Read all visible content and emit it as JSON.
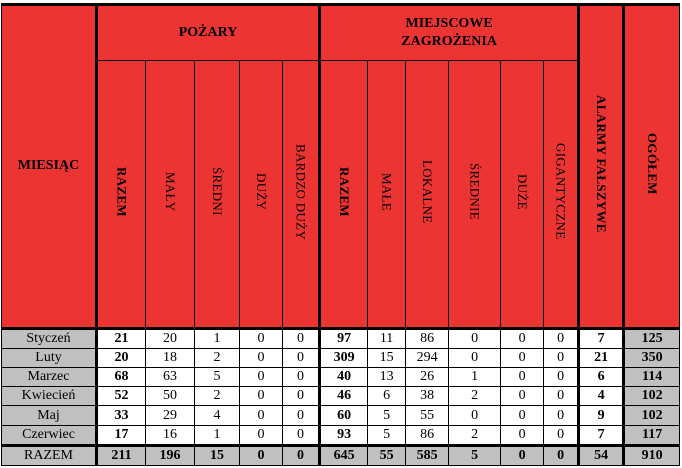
{
  "headers": {
    "month": "MIESIĄC",
    "fires_group": "POŻARY",
    "local_threats_group_line1": "MIEJSCOWE",
    "local_threats_group_line2": "ZAGROŻENIA",
    "fires_cols": [
      "RAZEM",
      "MAŁY",
      "ŚREDNI",
      "DUŻY",
      "BARDZO DUŻY"
    ],
    "threat_cols": [
      "RAZEM",
      "MAŁE",
      "LOKALNE",
      "ŚREDNIE",
      "DUŻE",
      "GIGANTYCZNE"
    ],
    "false_alarms": "ALARMY FAŁSZYWE",
    "total": "OGÓŁEM"
  },
  "rows": [
    {
      "month": "Styczeń",
      "values": [
        "21",
        "20",
        "1",
        "0",
        "0",
        "97",
        "11",
        "86",
        "0",
        "0",
        "0",
        "7",
        "125"
      ]
    },
    {
      "month": "Luty",
      "values": [
        "20",
        "18",
        "2",
        "0",
        "0",
        "309",
        "15",
        "294",
        "0",
        "0",
        "0",
        "21",
        "350"
      ]
    },
    {
      "month": "Marzec",
      "values": [
        "68",
        "63",
        "5",
        "0",
        "0",
        "40",
        "13",
        "26",
        "1",
        "0",
        "0",
        "6",
        "114"
      ]
    },
    {
      "month": "Kwiecień",
      "values": [
        "52",
        "50",
        "2",
        "0",
        "0",
        "46",
        "6",
        "38",
        "2",
        "0",
        "0",
        "4",
        "102"
      ]
    },
    {
      "month": "Maj",
      "values": [
        "33",
        "29",
        "4",
        "0",
        "0",
        "60",
        "5",
        "55",
        "0",
        "0",
        "0",
        "9",
        "102"
      ]
    },
    {
      "month": "Czerwiec",
      "values": [
        "17",
        "16",
        "1",
        "0",
        "0",
        "93",
        "5",
        "86",
        "2",
        "0",
        "0",
        "7",
        "117"
      ]
    }
  ],
  "summary": {
    "label": "RAZEM",
    "values": [
      "211",
      "196",
      "15",
      "0",
      "0",
      "645",
      "55",
      "585",
      "5",
      "0",
      "0",
      "54",
      "910"
    ]
  },
  "colors": {
    "header_red": "#ec3433",
    "gray": "#c0c0c0"
  }
}
